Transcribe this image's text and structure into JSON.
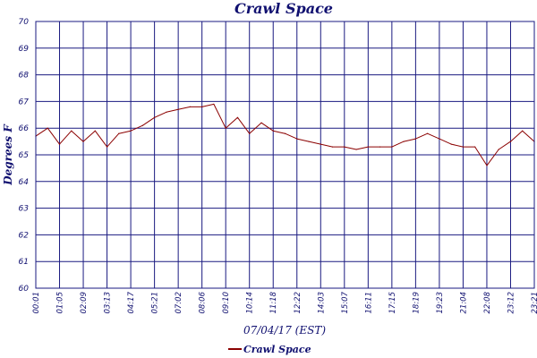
{
  "chart_data": {
    "type": "line",
    "title": "Crawl Space",
    "xlabel": "07/04/17 (EST)",
    "ylabel": "Degrees F",
    "ylim": [
      60,
      70
    ],
    "yticks": [
      "60",
      "61",
      "62",
      "63",
      "64",
      "65",
      "66",
      "67",
      "68",
      "69",
      "70"
    ],
    "xticks": [
      "00:01",
      "01:05",
      "02:09",
      "03:13",
      "04:17",
      "05:21",
      "07:02",
      "08:06",
      "09:10",
      "10:14",
      "11:18",
      "12:22",
      "14:03",
      "15:07",
      "16:11",
      "17:15",
      "18:19",
      "19:23",
      "21:04",
      "22:08",
      "23:12",
      "23:21"
    ],
    "grid": true,
    "legend_position": "bottom-left",
    "series": [
      {
        "name": "Crawl Space",
        "color": "#8b0000",
        "x": [
          0,
          0.5,
          1,
          1.5,
          2,
          2.5,
          3,
          3.5,
          4,
          4.5,
          5,
          5.5,
          6,
          6.5,
          7,
          7.5,
          8,
          8.5,
          9,
          9.5,
          10,
          10.5,
          11,
          11.5,
          12,
          12.5,
          13,
          13.5,
          14,
          14.5,
          15,
          15.5,
          16,
          16.5,
          17,
          17.5,
          18,
          18.5,
          19,
          19.5,
          20,
          20.5,
          21
        ],
        "values": [
          65.7,
          66.0,
          65.4,
          65.9,
          65.5,
          65.9,
          65.3,
          65.8,
          65.9,
          66.1,
          66.4,
          66.6,
          66.7,
          66.8,
          66.8,
          66.9,
          66.0,
          66.4,
          65.8,
          66.2,
          65.9,
          65.8,
          65.6,
          65.5,
          65.4,
          65.3,
          65.3,
          65.2,
          65.3,
          65.3,
          65.3,
          65.5,
          65.6,
          65.8,
          65.6,
          65.4,
          65.3,
          65.3,
          64.6,
          65.2,
          65.5,
          65.9,
          65.5
        ]
      }
    ]
  }
}
